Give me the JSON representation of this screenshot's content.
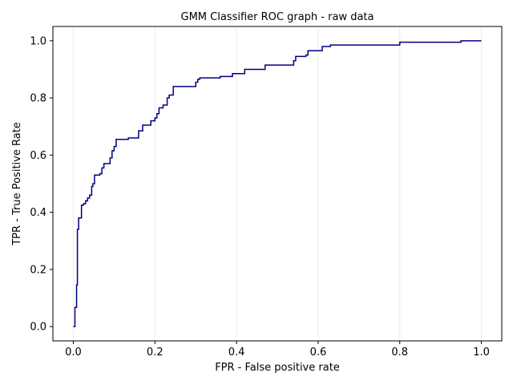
{
  "chart_data": {
    "type": "line",
    "title": "GMM Classifier ROC graph - raw data",
    "xlabel": "FPR - False positive rate",
    "ylabel": "TPR - True Positive Rate",
    "xlim": [
      -0.05,
      1.05
    ],
    "ylim": [
      -0.05,
      1.05
    ],
    "xticks": [
      0.0,
      0.2,
      0.4,
      0.6,
      0.8,
      1.0
    ],
    "yticks": [
      0.0,
      0.2,
      0.4,
      0.6,
      0.8,
      1.0
    ],
    "xtick_labels": [
      "0.0",
      "0.2",
      "0.4",
      "0.6",
      "0.8",
      "1.0"
    ],
    "ytick_labels": [
      "0.0",
      "0.2",
      "0.4",
      "0.6",
      "0.8",
      "1.0"
    ],
    "vertical_grid": true,
    "step": true,
    "series": [
      {
        "color": "#000080",
        "x": [
          0.0,
          0.004,
          0.008,
          0.01,
          0.013,
          0.016,
          0.02,
          0.025,
          0.03,
          0.035,
          0.04,
          0.045,
          0.048,
          0.052,
          0.06,
          0.065,
          0.07,
          0.075,
          0.08,
          0.09,
          0.095,
          0.1,
          0.105,
          0.11,
          0.115,
          0.135,
          0.16,
          0.165,
          0.17,
          0.18,
          0.19,
          0.195,
          0.2,
          0.205,
          0.21,
          0.22,
          0.225,
          0.23,
          0.235,
          0.24,
          0.245,
          0.26,
          0.3,
          0.305,
          0.31,
          0.315,
          0.33,
          0.36,
          0.37,
          0.39,
          0.41,
          0.42,
          0.45,
          0.47,
          0.5,
          0.54,
          0.545,
          0.55,
          0.57,
          0.575,
          0.59,
          0.6,
          0.61,
          0.63,
          0.65,
          0.8,
          0.85,
          0.94,
          0.95,
          1.0
        ],
        "y": [
          0.0,
          0.067,
          0.146,
          0.34,
          0.38,
          0.38,
          0.425,
          0.43,
          0.44,
          0.45,
          0.46,
          0.49,
          0.5,
          0.53,
          0.53,
          0.535,
          0.555,
          0.57,
          0.57,
          0.59,
          0.615,
          0.63,
          0.655,
          0.655,
          0.655,
          0.66,
          0.685,
          0.685,
          0.705,
          0.705,
          0.72,
          0.72,
          0.73,
          0.745,
          0.765,
          0.775,
          0.775,
          0.8,
          0.81,
          0.81,
          0.84,
          0.84,
          0.855,
          0.865,
          0.87,
          0.87,
          0.87,
          0.875,
          0.875,
          0.885,
          0.885,
          0.9,
          0.9,
          0.915,
          0.915,
          0.93,
          0.945,
          0.945,
          0.95,
          0.965,
          0.965,
          0.965,
          0.98,
          0.985,
          0.985,
          0.995,
          0.995,
          0.995,
          1.0,
          1.0
        ]
      }
    ]
  }
}
